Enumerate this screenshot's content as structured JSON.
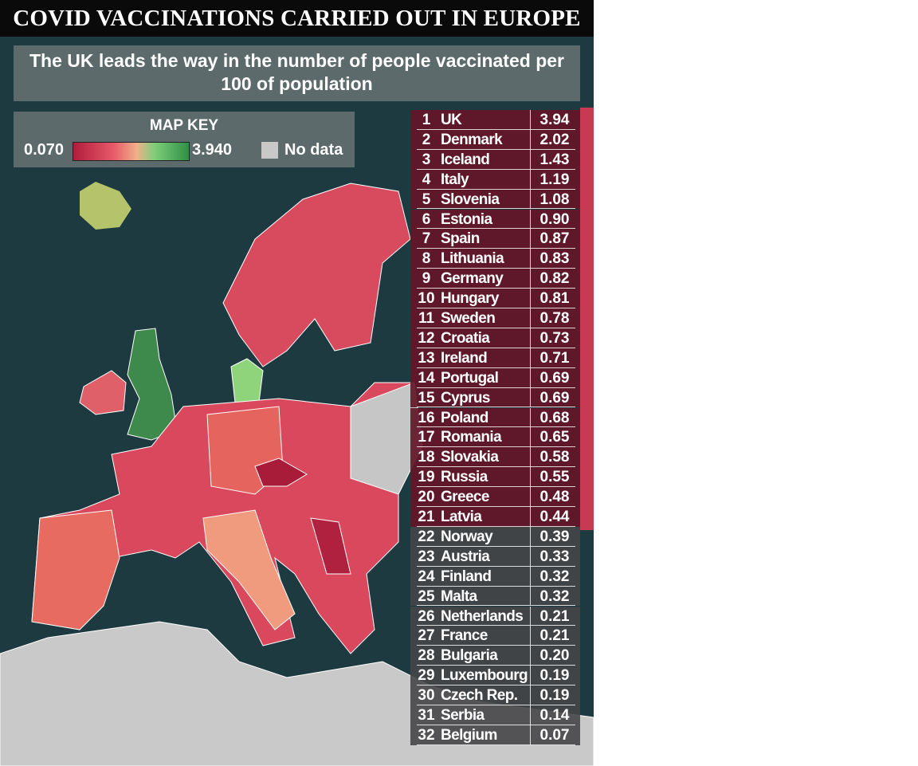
{
  "header": {
    "title": "COVID VACCINATIONS CARRIED OUT IN EUROPE",
    "subtitle": "The UK leads the way in the number of people vaccinated per 100 of population"
  },
  "map_key": {
    "title": "MAP KEY",
    "min": "0.070",
    "max": "3.940",
    "no_data": "No data"
  },
  "table": {
    "rows": [
      [
        1,
        "UK",
        "3.94"
      ],
      [
        2,
        "Denmark",
        "2.02"
      ],
      [
        3,
        "Iceland",
        "1.43"
      ],
      [
        4,
        "Italy",
        "1.19"
      ],
      [
        5,
        "Slovenia",
        "1.08"
      ],
      [
        6,
        "Estonia",
        "0.90"
      ],
      [
        7,
        "Spain",
        "0.87"
      ],
      [
        8,
        "Lithuania",
        "0.83"
      ],
      [
        9,
        "Germany",
        "0.82"
      ],
      [
        10,
        "Hungary",
        "0.81"
      ],
      [
        11,
        "Sweden",
        "0.78"
      ],
      [
        12,
        "Croatia",
        "0.73"
      ],
      [
        13,
        "Ireland",
        "0.71"
      ],
      [
        14,
        "Portugal",
        "0.69"
      ],
      [
        15,
        "Cyprus",
        "0.69"
      ],
      [
        16,
        "Poland",
        "0.68"
      ],
      [
        17,
        "Romania",
        "0.65"
      ],
      [
        18,
        "Slovakia",
        "0.58"
      ],
      [
        19,
        "Russia",
        "0.55"
      ],
      [
        20,
        "Greece",
        "0.48"
      ],
      [
        21,
        "Latvia",
        "0.44"
      ],
      [
        22,
        "Norway",
        "0.39"
      ],
      [
        23,
        "Austria",
        "0.33"
      ],
      [
        24,
        "Finland",
        "0.32"
      ],
      [
        25,
        "Malta",
        "0.32"
      ],
      [
        26,
        "Netherlands",
        "0.21"
      ],
      [
        27,
        "France",
        "0.21"
      ],
      [
        28,
        "Bulgaria",
        "0.20"
      ],
      [
        29,
        "Luxembourg",
        "0.19"
      ],
      [
        30,
        "Czech Rep.",
        "0.19"
      ],
      [
        31,
        "Serbia",
        "0.14"
      ],
      [
        32,
        "Belgium",
        "0.07"
      ]
    ]
  }
}
